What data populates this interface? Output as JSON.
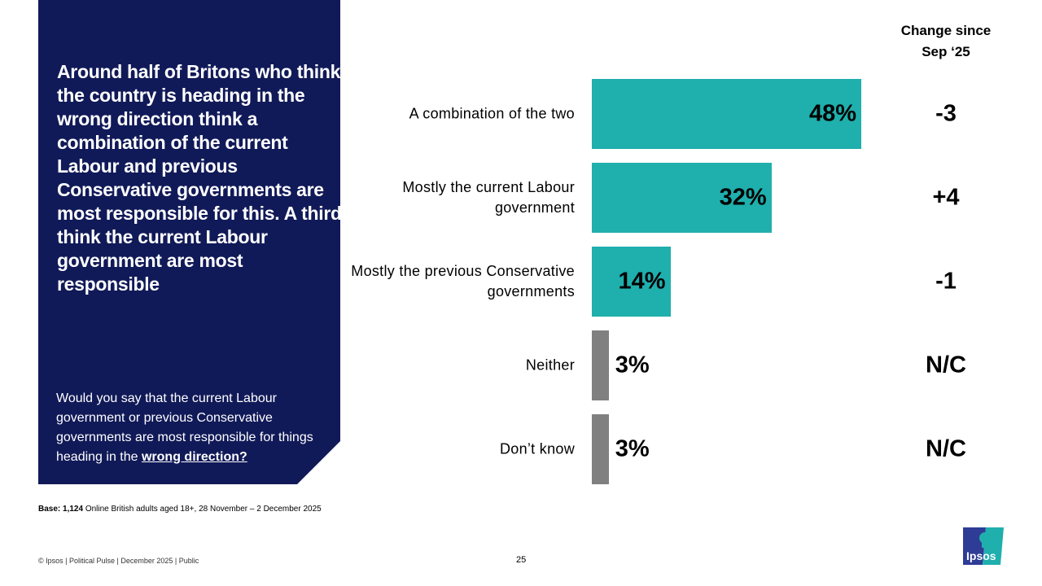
{
  "headline": "Around half of Britons who think the country is heading in the wrong direction think a combination of the current Labour and previous Conservative governments are most responsible for this. A third think the current Labour government are most responsible",
  "question": {
    "text": "Would you say that the current Labour government or previous Conservative governments are most responsible for things heading in the ",
    "emphasis": "wrong direction?"
  },
  "change_header": [
    "Change since",
    "Sep ‘25"
  ],
  "chart_data": {
    "type": "bar",
    "orientation": "horizontal",
    "xlim": [
      0,
      50
    ],
    "grid": false,
    "categories": [
      "A combination of the two",
      "Mostly the current Labour government",
      "Mostly the previous Conservative governments",
      "Neither",
      "Don’t know"
    ],
    "values": [
      48,
      32,
      14,
      3,
      3
    ],
    "data_labels": [
      "48%",
      "32%",
      "14%",
      "3%",
      "3%"
    ],
    "change": [
      "-3",
      "+4",
      "-1",
      "N/C",
      "N/C"
    ],
    "colors": [
      "#1fafad",
      "#1fafad",
      "#1fafad",
      "#808080",
      "#808080"
    ]
  },
  "base": {
    "label": "Base: 1,124",
    "text": "Online British adults aged 18+,  28 November – 2 December 2025"
  },
  "footer": "© Ipsos | Political Pulse | December 2025 | Public",
  "page_number": "25",
  "logo_text": "Ipsos",
  "colors": {
    "panel": "#111a58",
    "teal": "#1fafad",
    "grey": "#808080"
  }
}
